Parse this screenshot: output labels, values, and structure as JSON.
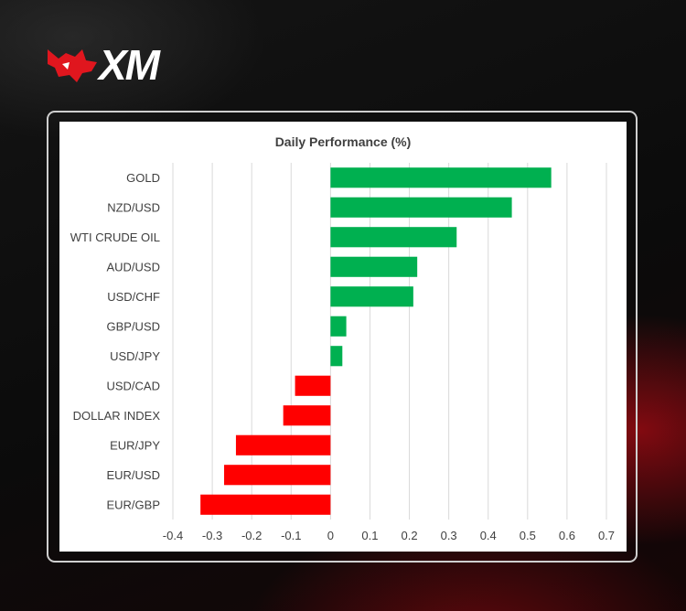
{
  "brand": {
    "logo_text": "XM",
    "logo_red": "#e0161e"
  },
  "chart_data": {
    "type": "bar",
    "orientation": "horizontal",
    "title": "Daily Performance (%)",
    "categories": [
      "GOLD",
      "NZD/USD",
      "WTI CRUDE OIL",
      "AUD/USD",
      "USD/CHF",
      "GBP/USD",
      "USD/JPY",
      "USD/CAD",
      "DOLLAR INDEX",
      "EUR/JPY",
      "EUR/USD",
      "EUR/GBP"
    ],
    "values": [
      0.56,
      0.46,
      0.32,
      0.22,
      0.21,
      0.04,
      0.03,
      -0.09,
      -0.12,
      -0.24,
      -0.27,
      -0.33
    ],
    "xlim": [
      -0.4,
      0.7
    ],
    "xticks": [
      "-0.4",
      "-0.3",
      "-0.2",
      "-0.1",
      "0",
      "0.1",
      "0.2",
      "0.3",
      "0.4",
      "0.5",
      "0.6",
      "0.7"
    ],
    "grid": "vertical",
    "positive_color": "#00b050",
    "negative_color": "#ff0000",
    "xlabel": "",
    "ylabel": ""
  }
}
